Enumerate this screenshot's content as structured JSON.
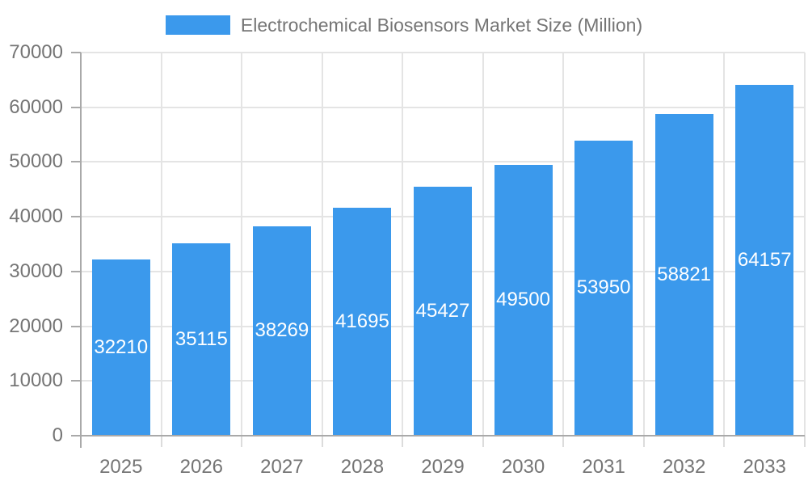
{
  "chart_data": {
    "type": "bar",
    "title": "Electrochemical Biosensors Market Size (Million)",
    "categories": [
      "2025",
      "2026",
      "2027",
      "2028",
      "2029",
      "2030",
      "2031",
      "2032",
      "2033"
    ],
    "values": [
      32210,
      35115,
      38269,
      41695,
      45427,
      49500,
      53950,
      58821,
      64157
    ],
    "xlabel": "",
    "ylabel": "",
    "ylim": [
      0,
      70000
    ],
    "ytick_step": 10000,
    "ytick_labels": [
      "0",
      "10000",
      "20000",
      "30000",
      "40000",
      "50000",
      "60000",
      "70000"
    ],
    "legend_position": "top",
    "grid": true,
    "bar_value_labels": "centered-inside-white",
    "colors": {
      "bar": "#3b99ec",
      "bar_label": "#ffffff",
      "axis": "#a9a9a9",
      "grid": "#e4e4e4",
      "tick_minor": "#dcdcdc",
      "label": "#757575",
      "background": "#ffffff"
    }
  }
}
